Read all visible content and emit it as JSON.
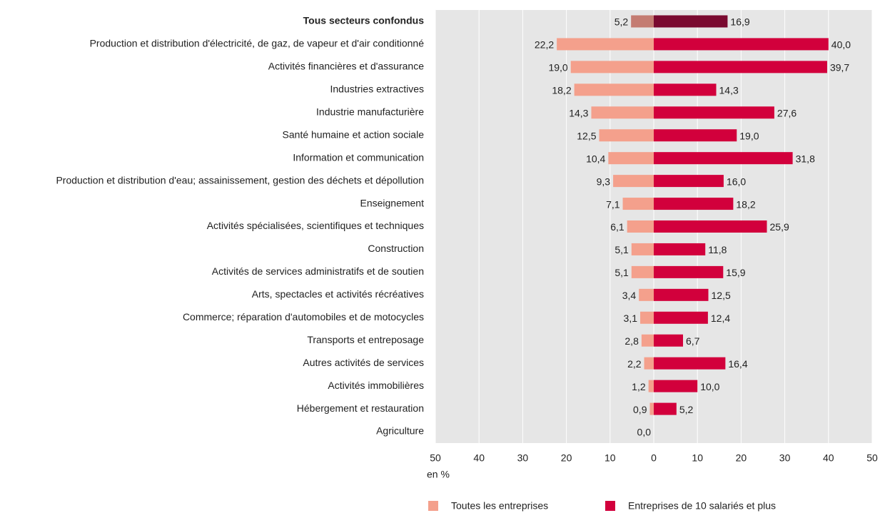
{
  "chart_data": {
    "type": "diverging-bar",
    "categories": [
      "Tous secteurs confondus",
      "Production et distribution d'électricité, de gaz, de vapeur et d'air conditionné",
      "Activités financières et d'assurance",
      "Industries extractives",
      "Industrie manufacturière",
      "Santé humaine et action sociale",
      "Information et communication",
      "Production et distribution d'eau; assainissement, gestion des déchets et dépollution",
      "Enseignement",
      "Activités spécialisées, scientifiques et techniques",
      "Construction",
      "Activités de services administratifs et de soutien",
      "Arts, spectacles et activités récréatives",
      "Commerce; réparation d'automobiles et de motocycles",
      "Transports et entreposage",
      "Autres activités de services",
      "Activités immobilières",
      "Hébergement et restauration",
      "Agriculture"
    ],
    "highlight_index": 0,
    "series": [
      {
        "name": "Toutes les entreprises",
        "color": "#f4a08c",
        "highlight_color": "#c47c72",
        "side": "left",
        "values": [
          5.2,
          22.2,
          19.0,
          18.2,
          14.3,
          12.5,
          10.4,
          9.3,
          7.1,
          6.1,
          5.1,
          5.1,
          3.4,
          3.1,
          2.8,
          2.2,
          1.2,
          0.9,
          0.0
        ],
        "value_labels": [
          "5,2",
          "22,2",
          "19,0",
          "18,2",
          "14,3",
          "12,5",
          "10,4",
          "9,3",
          "7,1",
          "6,1",
          "5,1",
          "5,1",
          "3,4",
          "3,1",
          "2,8",
          "2,2",
          "1,2",
          "0,9",
          "0,0"
        ]
      },
      {
        "name": "Entreprises de 10 salariés et plus",
        "color": "#d2003c",
        "highlight_color": "#7a0a30",
        "side": "right",
        "values": [
          16.9,
          40.0,
          39.7,
          14.3,
          27.6,
          19.0,
          31.8,
          16.0,
          18.2,
          25.9,
          11.8,
          15.9,
          12.5,
          12.4,
          6.7,
          16.4,
          10.0,
          5.2,
          null
        ],
        "value_labels": [
          "16,9",
          "40,0",
          "39,7",
          "14,3",
          "27,6",
          "19,0",
          "31,8",
          "16,0",
          "18,2",
          "25,9",
          "11,8",
          "15,9",
          "12,5",
          "12,4",
          "6,7",
          "16,4",
          "10,0",
          "5,2",
          null
        ]
      }
    ],
    "xlim": [
      -50,
      50
    ],
    "xticks": [
      {
        "value": -50,
        "label": "50"
      },
      {
        "value": -40,
        "label": "40"
      },
      {
        "value": -30,
        "label": "30"
      },
      {
        "value": -20,
        "label": "20"
      },
      {
        "value": -10,
        "label": "10"
      },
      0,
      10,
      20,
      30,
      40,
      50
    ],
    "xlabel": "en %",
    "grid": true
  }
}
